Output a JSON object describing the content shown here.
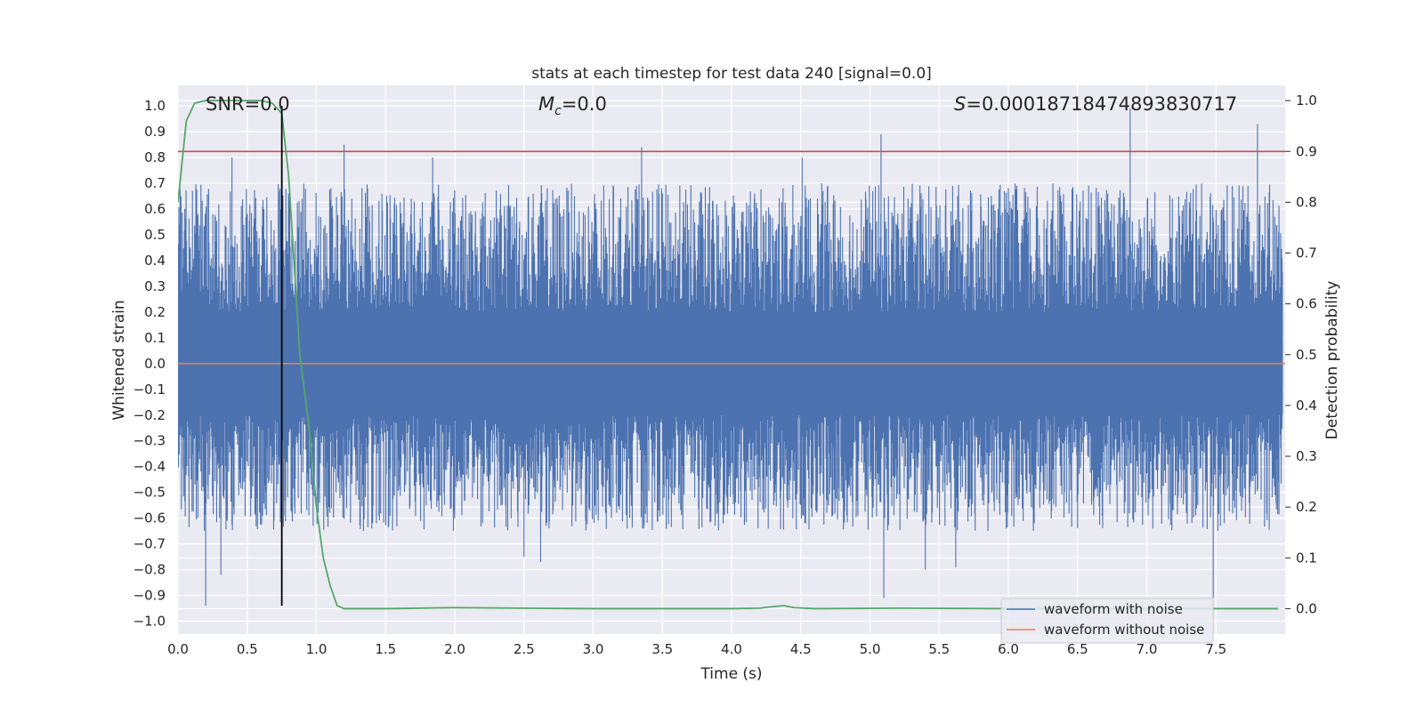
{
  "chart_data": {
    "type": "line",
    "title": "stats at each timestep for test data 240 [signal=0.0]",
    "xlabel": "Time (s)",
    "ylabel": "Whitened strain",
    "ylabel_right": "Detection probability",
    "xlim": [
      0.0,
      8.0
    ],
    "ylim": [
      -1.05,
      1.08
    ],
    "ylim_right": [
      -0.05,
      1.03
    ],
    "xticks": [
      0.0,
      0.5,
      1.0,
      1.5,
      2.0,
      2.5,
      3.0,
      3.5,
      4.0,
      4.5,
      5.0,
      5.5,
      6.0,
      6.5,
      7.0,
      7.5
    ],
    "xtick_labels": [
      "0.0",
      "0.5",
      "1.0",
      "1.5",
      "2.0",
      "2.5",
      "3.0",
      "3.5",
      "4.0",
      "4.5",
      "5.0",
      "5.5",
      "6.0",
      "6.5",
      "7.0",
      "7.5"
    ],
    "yticks": [
      1.0,
      0.9,
      0.8,
      0.7,
      0.6,
      0.5,
      0.4,
      0.3,
      0.2,
      0.1,
      0.0,
      -0.1,
      -0.2,
      -0.3,
      -0.4,
      -0.5,
      -0.6,
      -0.7,
      -0.8,
      -0.9,
      -1.0
    ],
    "ytick_labels": [
      "1.0",
      "0.9",
      "0.8",
      "0.7",
      "0.6",
      "0.5",
      "0.4",
      "0.3",
      "0.2",
      "0.1",
      "0.0",
      "−0.1",
      "−0.2",
      "−0.3",
      "−0.4",
      "−0.5",
      "−0.6",
      "−0.7",
      "−0.8",
      "−0.9",
      "−1.0"
    ],
    "yticks_right": [
      1.0,
      0.9,
      0.8,
      0.7,
      0.6,
      0.5,
      0.4,
      0.3,
      0.2,
      0.1,
      0.0
    ],
    "ytick_labels_right": [
      "1.0",
      "0.9",
      "0.8",
      "0.7",
      "0.6",
      "0.5",
      "0.4",
      "0.3",
      "0.2",
      "0.1",
      "0.0"
    ],
    "grid": true,
    "legend_position": "lower-right",
    "annotations": {
      "snr": "SNR=0.0",
      "mc_symbol": "M",
      "mc_sub": "c",
      "mc_value": "=0.0",
      "s_symbol": "S",
      "s_value": "=0.00018718474893830717"
    },
    "series": [
      {
        "name": "waveform with noise",
        "color": "#4c72b0",
        "axis": "left",
        "style": "dense noise",
        "baseline_range": [
          -0.2,
          0.2
        ],
        "spike_points": [
          [
            0.2,
            -0.94
          ],
          [
            0.31,
            -0.82
          ],
          [
            0.39,
            0.8
          ],
          [
            0.78,
            -0.38
          ],
          [
            1.2,
            0.85
          ],
          [
            1.34,
            -0.65
          ],
          [
            1.84,
            0.8
          ],
          [
            2.5,
            -0.75
          ],
          [
            2.62,
            -0.77
          ],
          [
            3.35,
            0.84
          ],
          [
            4.51,
            0.8
          ],
          [
            5.08,
            0.89
          ],
          [
            5.1,
            -0.91
          ],
          [
            5.4,
            -0.8
          ],
          [
            5.62,
            -0.79
          ],
          [
            6.88,
            0.99
          ],
          [
            7.48,
            -0.91
          ],
          [
            7.8,
            0.93
          ]
        ]
      },
      {
        "name": "waveform without noise",
        "color": "#dd8452",
        "axis": "left",
        "x": [
          0.0,
          8.0
        ],
        "y": [
          0.0,
          0.0
        ]
      },
      {
        "name": "",
        "color": "#55a868",
        "axis": "right",
        "x": [
          0.0,
          0.06,
          0.12,
          0.2,
          0.4,
          0.6,
          0.68,
          0.75,
          0.8,
          0.88,
          0.95,
          1.0,
          1.05,
          1.1,
          1.15,
          1.2,
          1.5,
          2.0,
          3.0,
          4.0,
          4.2,
          4.3,
          4.38,
          4.45,
          4.6,
          5.2,
          6.0,
          7.0,
          7.95
        ],
        "y": [
          0.8,
          0.96,
          0.995,
          1.0,
          1.0,
          1.0,
          0.995,
          0.975,
          0.85,
          0.5,
          0.35,
          0.2,
          0.1,
          0.045,
          0.006,
          0.0,
          0.0,
          0.002,
          0.0,
          0.0,
          0.001,
          0.004,
          0.006,
          0.002,
          0.0,
          0.001,
          0.0,
          0.0,
          0.0
        ]
      }
    ],
    "threshold_line": {
      "y_right": 0.9,
      "color": "#c44e52"
    },
    "marker_line": {
      "x": 0.75,
      "y_from": -0.94,
      "y_to": 1.0,
      "color": "#000000"
    }
  }
}
